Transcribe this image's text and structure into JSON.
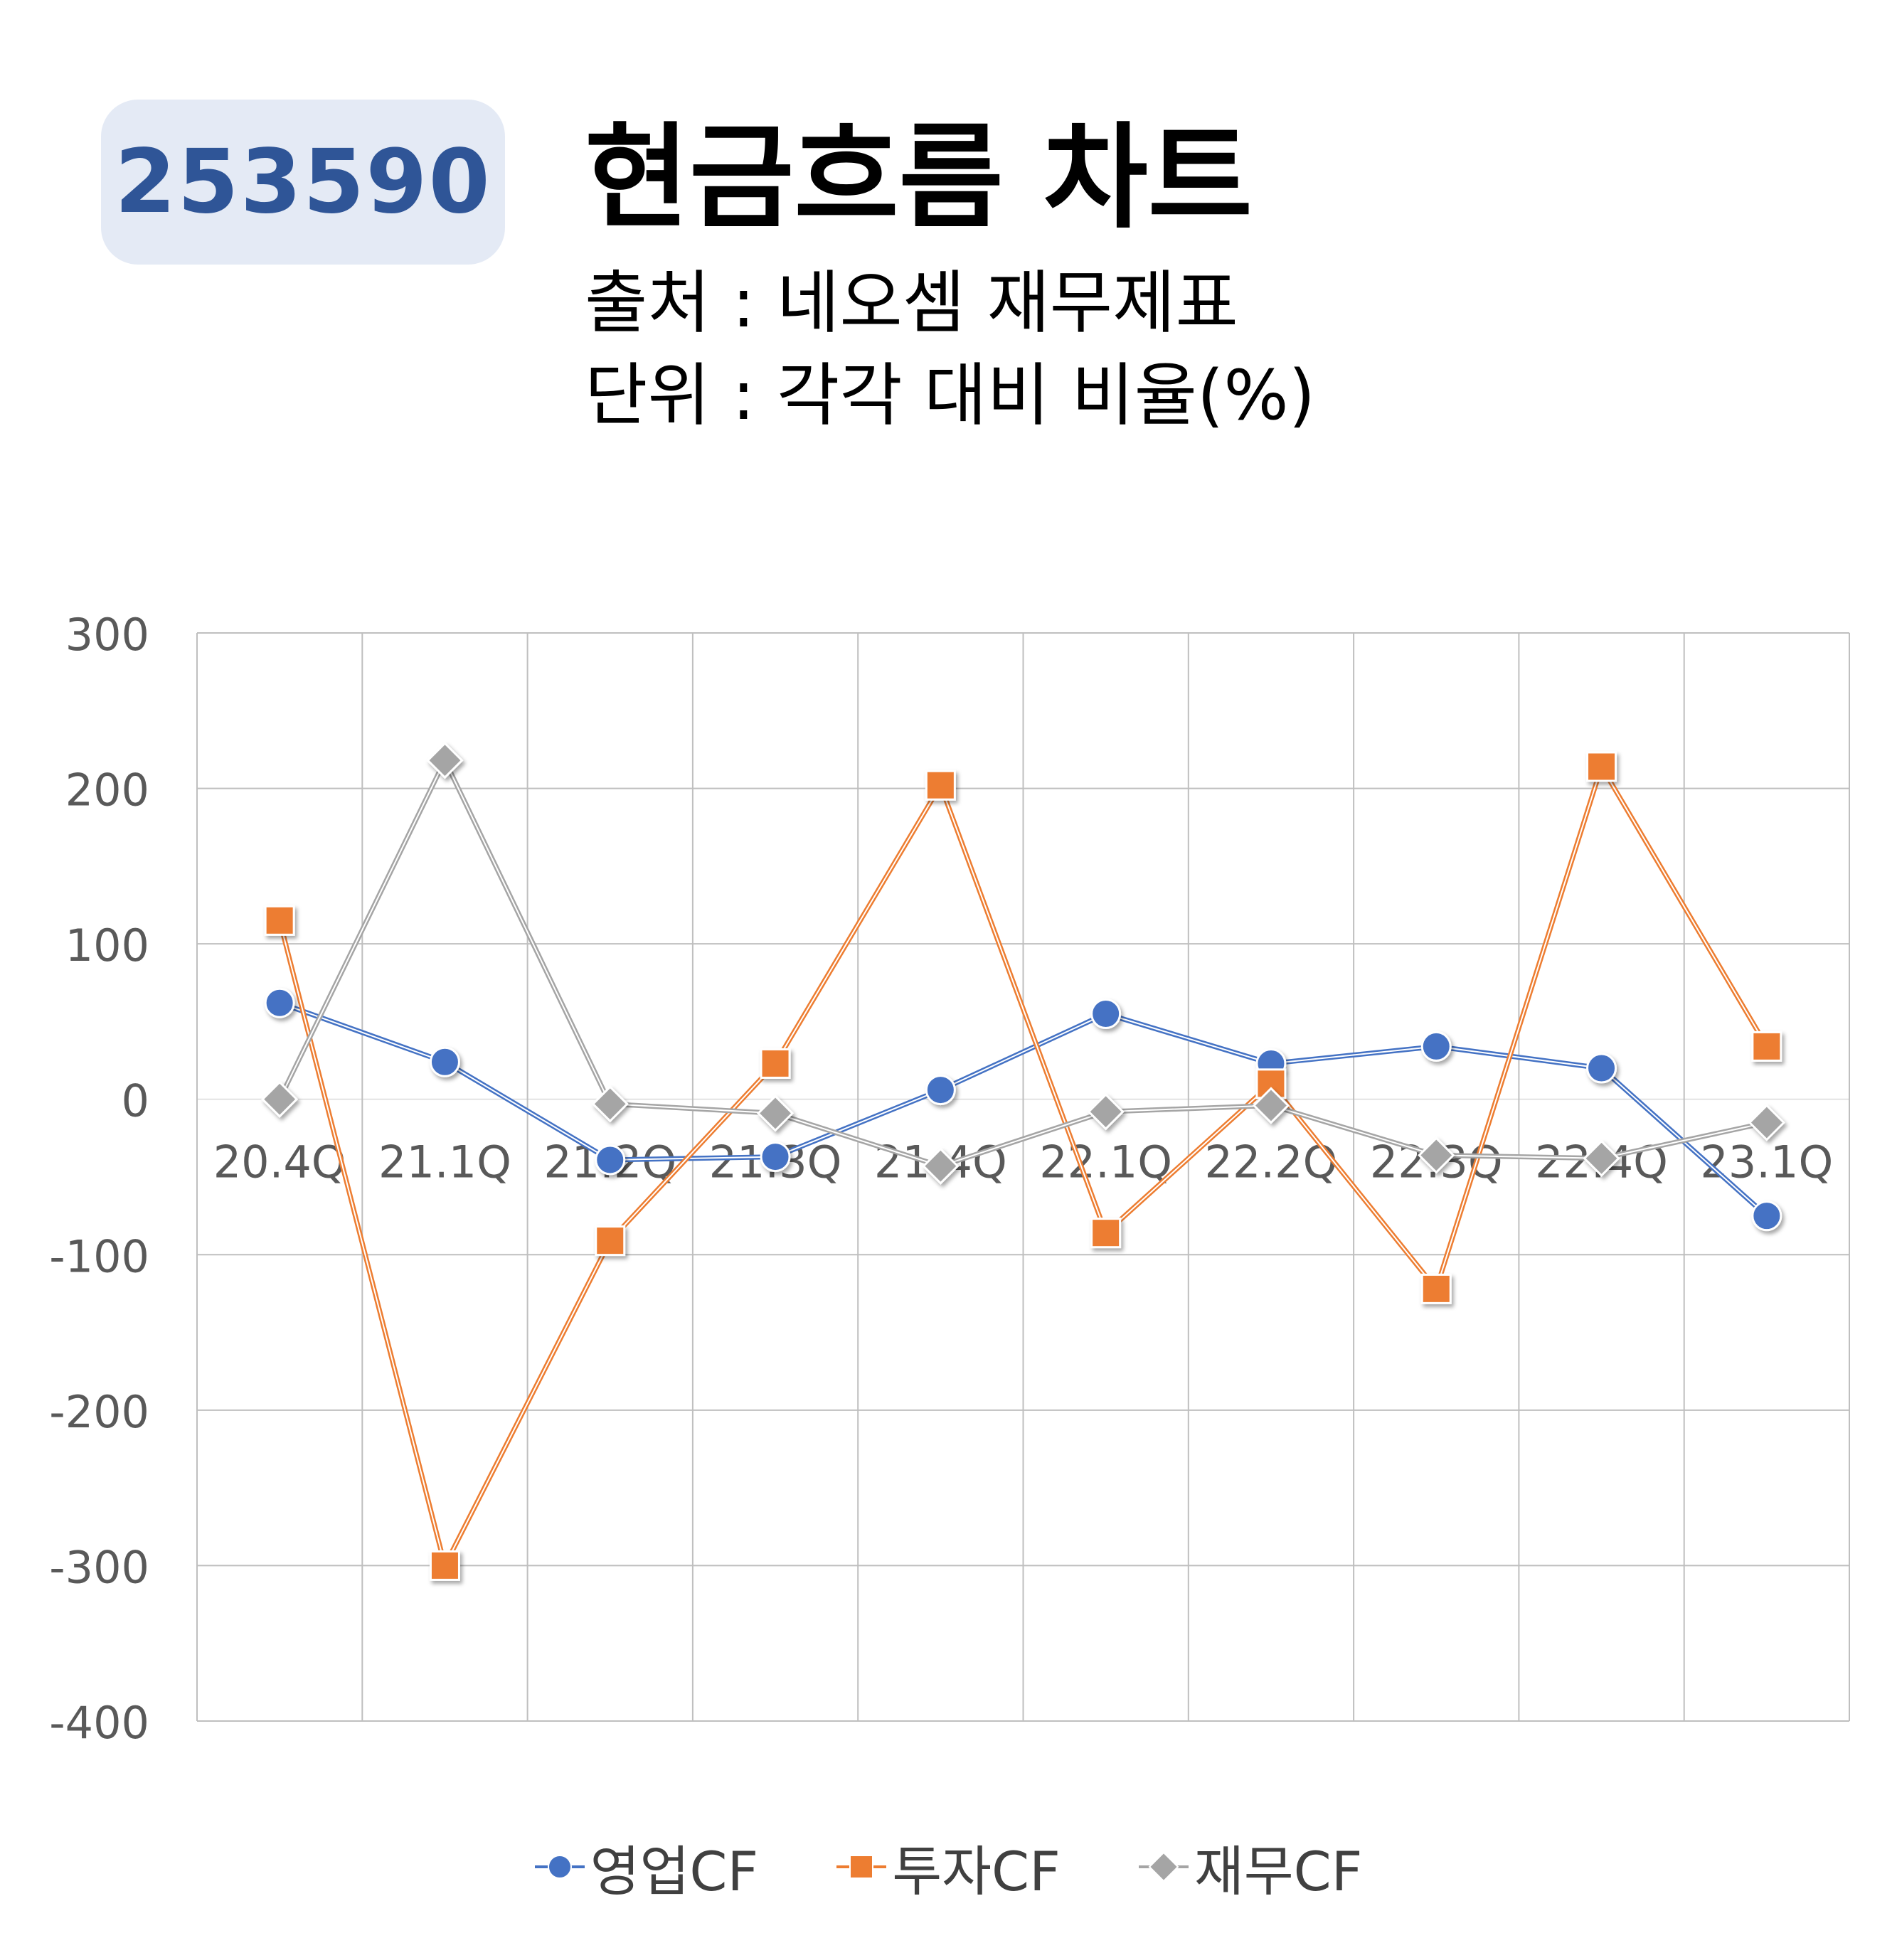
{
  "header": {
    "stock_code": "253590",
    "title": "현금흐름 차트",
    "source": "출처 : 네오셈 재무제표",
    "unit": "단위 : 각각 대비 비율(%)"
  },
  "chart_data": {
    "type": "line",
    "categories": [
      "20.4Q",
      "21.1Q",
      "21.2Q",
      "21.3Q",
      "21.4Q",
      "22.1Q",
      "22.2Q",
      "22.3Q",
      "22.4Q",
      "23.1Q"
    ],
    "series": [
      {
        "name": "영업CF",
        "color": "#4472c4",
        "marker": "circle",
        "values": [
          62,
          24,
          -39,
          -37,
          6,
          55,
          23,
          34,
          20,
          -75
        ]
      },
      {
        "name": "투자CF",
        "color": "#ed7d31",
        "marker": "square",
        "values": [
          115,
          -300,
          -91,
          23,
          202,
          -86,
          10,
          -122,
          214,
          34
        ]
      },
      {
        "name": "재무CF",
        "color": "#a5a5a5",
        "marker": "diamond",
        "values": [
          0,
          218,
          -3,
          -9,
          -43,
          -8,
          -4,
          -36,
          -38,
          -15
        ]
      }
    ],
    "y_ticks": [
      300,
      200,
      100,
      0,
      -100,
      -200,
      -300,
      -400
    ],
    "ylim": [
      -400,
      300
    ],
    "grid": true,
    "legend": "bottom",
    "title": "",
    "xlabel": "",
    "ylabel": ""
  }
}
